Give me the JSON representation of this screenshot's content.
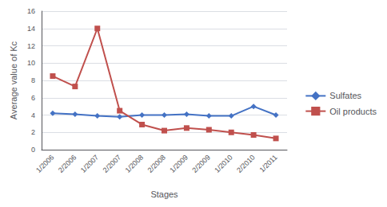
{
  "chart_data": {
    "type": "line",
    "xlabel": "Stages",
    "ylabel": "Average value of Kc",
    "categories": [
      "1/2006",
      "2/2006",
      "1/2007",
      "2/2007",
      "1/2008",
      "2/2008",
      "1/2009",
      "2/2009",
      "1/2010",
      "2/2010",
      "1/2011"
    ],
    "series": [
      {
        "name": "Sulfates",
        "color": "#4472C4",
        "marker": "diamond",
        "values": [
          4.2,
          4.1,
          3.9,
          3.8,
          4.0,
          4.0,
          4.1,
          3.9,
          3.9,
          5.0,
          4.0
        ]
      },
      {
        "name": "Oil products",
        "color": "#C0504D",
        "marker": "square",
        "values": [
          8.5,
          7.3,
          14.0,
          4.5,
          2.9,
          2.2,
          2.5,
          2.3,
          2.0,
          1.7,
          1.3
        ]
      }
    ],
    "ylim": [
      0,
      16
    ],
    "yticks": [
      0,
      2,
      4,
      6,
      8,
      10,
      12,
      14,
      16
    ],
    "grid": true,
    "legend": "right"
  }
}
